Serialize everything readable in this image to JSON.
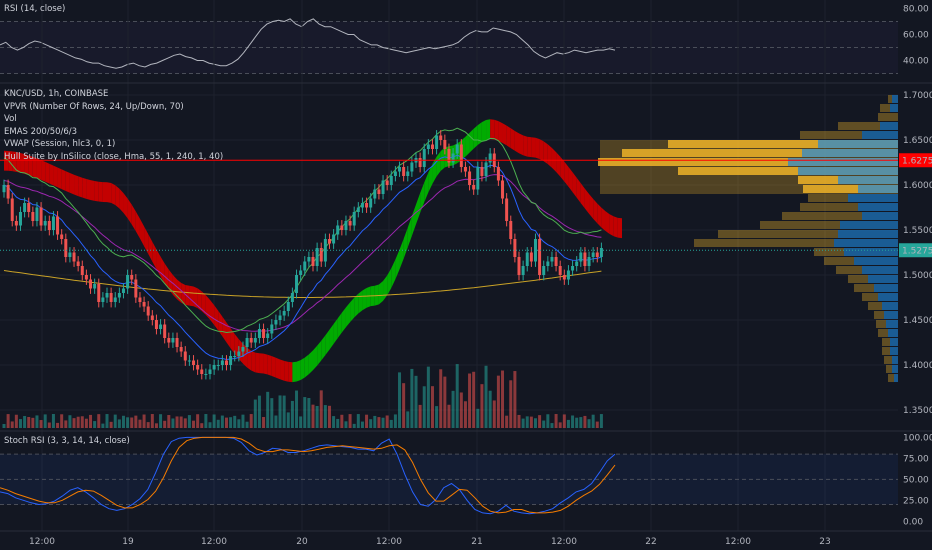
{
  "colors": {
    "background": "#131722",
    "up": "#26a69a",
    "down": "#ef5350",
    "hull_up": "#00b300",
    "hull_down": "#cc0000",
    "rsi_line": "#b2b5be",
    "stoch_k": "#2962ff",
    "stoch_d": "#f57c00",
    "hline": "#ff0000",
    "vpvr_up": "#2196f3",
    "vpvr_down": "#f0b429"
  },
  "legend": {
    "rsi": "RSI (14, close)",
    "symbol": "KNC/USD, 1h, COINBASE",
    "vpvr": "VPVR (Number Of Rows, 24, Up/Down, 70)",
    "vol": "Vol",
    "emas": "EMAS 200/50/6/3",
    "vwap": "VWAP (Session, hlc3, 0, 1)",
    "hull": "Hull Suite by InSilico (close, Hma, 55, 1, 240, 1, 40)",
    "stoch": "Stoch RSI (3, 3, 14, 14, close)"
  },
  "price_labels": {
    "hline": "1.6275",
    "last": "1.5275"
  },
  "chart_data": {
    "type": "candlestick",
    "symbol": "KNC/USD",
    "interval": "1h",
    "price_axis": {
      "ticks": [
        "1.7000",
        "1.6500",
        "1.6000",
        "1.5500",
        "1.5000",
        "1.4500",
        "1.4000",
        "1.3500"
      ],
      "range": [
        1.33,
        1.71
      ]
    },
    "rsi_axis": {
      "ticks": [
        "80.00",
        "60.00",
        "40.00"
      ],
      "range": [
        25,
        85
      ],
      "bands": [
        30,
        70
      ]
    },
    "stoch_axis": {
      "ticks": [
        "100.00",
        "75.00",
        "50.00",
        "25.00",
        "0.00"
      ],
      "range": [
        -8,
        104
      ],
      "bands": [
        20,
        80
      ]
    },
    "x_axis": {
      "ticks": [
        "12:00",
        "19",
        "12:00",
        "20",
        "12:00",
        "21",
        "12:00",
        "22",
        "12:00",
        "23"
      ]
    },
    "horizontal_line": 1.6275,
    "last_price": 1.5275,
    "close": [
      1.6,
      1.585,
      1.56,
      1.555,
      1.57,
      1.58,
      1.57,
      1.56,
      1.575,
      1.555,
      1.56,
      1.55,
      1.565,
      1.545,
      1.54,
      1.52,
      1.525,
      1.515,
      1.51,
      1.5,
      1.495,
      1.485,
      1.49,
      1.47,
      1.475,
      1.48,
      1.47,
      1.475,
      1.48,
      1.485,
      1.5,
      1.495,
      1.475,
      1.47,
      1.465,
      1.455,
      1.45,
      1.44,
      1.445,
      1.43,
      1.425,
      1.43,
      1.42,
      1.415,
      1.405,
      1.405,
      1.4,
      1.395,
      1.39,
      1.39,
      1.395,
      1.4,
      1.4,
      1.405,
      1.4,
      1.41,
      1.41,
      1.415,
      1.42,
      1.43,
      1.425,
      1.43,
      1.44,
      1.43,
      1.435,
      1.445,
      1.45,
      1.455,
      1.46,
      1.47,
      1.48,
      1.5,
      1.505,
      1.515,
      1.52,
      1.51,
      1.53,
      1.515,
      1.54,
      1.535,
      1.545,
      1.555,
      1.55,
      1.56,
      1.555,
      1.57,
      1.575,
      1.58,
      1.575,
      1.585,
      1.595,
      1.59,
      1.605,
      1.6,
      1.61,
      1.615,
      1.62,
      1.61,
      1.615,
      1.625,
      1.63,
      1.62,
      1.64,
      1.645,
      1.64,
      1.655,
      1.65,
      1.64,
      1.625,
      1.635,
      1.645,
      1.62,
      1.615,
      1.6,
      1.595,
      1.62,
      1.61,
      1.625,
      1.635,
      1.62,
      1.605,
      1.585,
      1.56,
      1.54,
      1.52,
      1.5,
      1.51,
      1.525,
      1.515,
      1.54,
      1.5,
      1.51,
      1.515,
      1.52,
      1.51,
      1.5,
      1.495,
      1.505,
      1.51,
      1.515,
      1.525,
      1.51,
      1.52,
      1.525,
      1.52,
      1.53
    ],
    "rsi": [
      52,
      54,
      50,
      48,
      50,
      53,
      55,
      54,
      52,
      50,
      48,
      46,
      44,
      42,
      41,
      39,
      38,
      38,
      36,
      35,
      34,
      35,
      37,
      38,
      36,
      35,
      37,
      38,
      40,
      42,
      44,
      45,
      43,
      42,
      40,
      40,
      38,
      37,
      36,
      36,
      38,
      41,
      46,
      52,
      58,
      64,
      68,
      70,
      71,
      70,
      72,
      68,
      66,
      70,
      72,
      68,
      66,
      66,
      64,
      62,
      60,
      60,
      56,
      54,
      52,
      52,
      50,
      49,
      48,
      47,
      46,
      47,
      48,
      49,
      50,
      49,
      50,
      51,
      52,
      54,
      58,
      61,
      63,
      62,
      62,
      65,
      64,
      63,
      62,
      60,
      56,
      52,
      47,
      44,
      42,
      44,
      46,
      45,
      46,
      48,
      47,
      46,
      47,
      48,
      48,
      49,
      48
    ],
    "stoch_k": [
      35,
      33,
      28,
      25,
      22,
      20,
      21,
      24,
      30,
      37,
      40,
      35,
      28,
      20,
      15,
      13,
      15,
      20,
      27,
      38,
      58,
      80,
      95,
      99,
      100,
      100,
      100,
      100,
      100,
      100,
      99,
      94,
      84,
      79,
      82,
      87,
      86,
      82,
      82,
      84,
      87,
      90,
      91,
      90,
      89,
      88,
      86,
      86,
      84,
      93,
      98,
      80,
      56,
      35,
      20,
      18,
      26,
      40,
      45,
      38,
      25,
      14,
      10,
      9,
      12,
      19,
      12,
      10,
      9,
      10,
      12,
      15,
      22,
      28,
      35,
      38,
      45,
      58,
      72,
      80
    ],
    "stoch_d": [
      40,
      37,
      33,
      30,
      27,
      24,
      22,
      22,
      25,
      30,
      35,
      37,
      36,
      31,
      25,
      19,
      16,
      16,
      20,
      26,
      36,
      52,
      72,
      88,
      96,
      99,
      100,
      100,
      100,
      100,
      100,
      98,
      93,
      86,
      83,
      83,
      85,
      85,
      84,
      83,
      84,
      86,
      88,
      89,
      90,
      89,
      88,
      87,
      86,
      87,
      90,
      91,
      85,
      70,
      50,
      34,
      24,
      24,
      31,
      38,
      37,
      28,
      18,
      12,
      10,
      11,
      14,
      14,
      11,
      10,
      10,
      11,
      13,
      18,
      25,
      31,
      36,
      44,
      55,
      67
    ]
  }
}
